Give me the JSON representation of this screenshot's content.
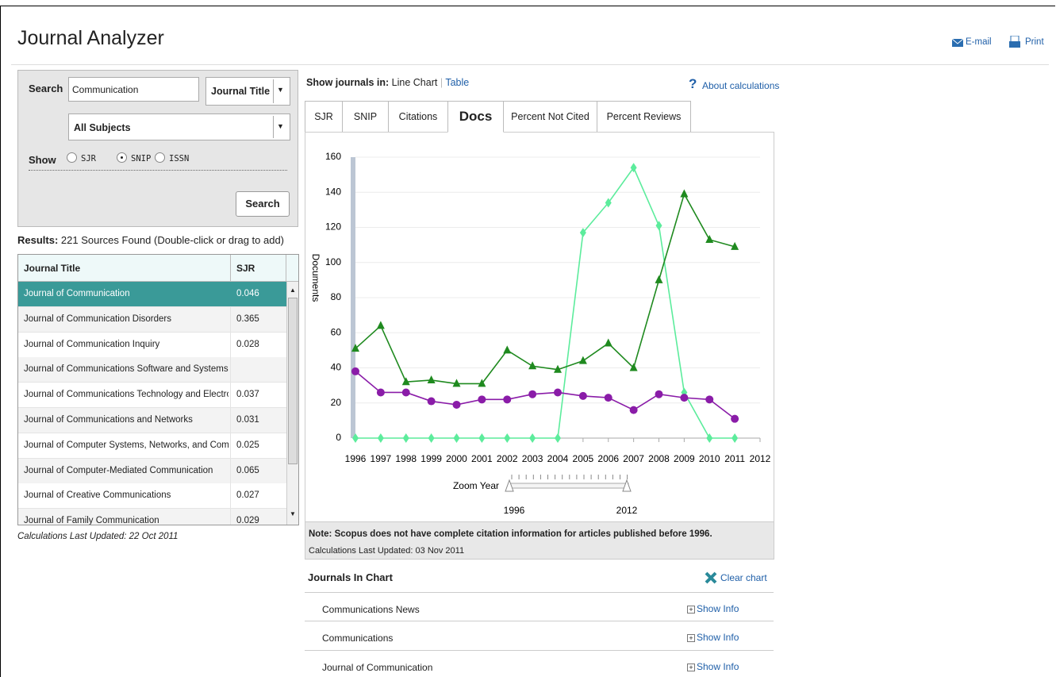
{
  "header": {
    "title": "Journal Analyzer",
    "email": "E-mail",
    "print": "Print"
  },
  "search": {
    "label": "Search",
    "query": "Communication",
    "field": "Journal Title",
    "subject": "All Subjects",
    "show_label": "Show",
    "options": [
      "SJR",
      "SNIP",
      "ISSN"
    ],
    "selected": 1,
    "button": "Search"
  },
  "results": {
    "label": "Results:",
    "text": "221 Sources Found (Double-click or drag to add)",
    "columns": [
      "Journal Title",
      "SJR"
    ],
    "rows": [
      [
        "Journal of Communication",
        "0.046"
      ],
      [
        "Journal of Communication Disorders",
        "0.365"
      ],
      [
        "Journal of Communication Inquiry",
        "0.028"
      ],
      [
        "Journal of Communications Software and Systems",
        null
      ],
      [
        "Journal of Communications Technology and Electronics",
        "0.037"
      ],
      [
        "Journal of Communications and Networks",
        "0.031"
      ],
      [
        "Journal of Computer Systems, Networks, and Commun",
        "0.025"
      ],
      [
        "Journal of Computer-Mediated Communication",
        "0.065"
      ],
      [
        "Journal of Creative Communications",
        "0.027"
      ],
      [
        "Journal of Family Communication",
        "0.029"
      ]
    ],
    "selected_row": 0,
    "updated": "Calculations Last Updated: 22 Oct 2011"
  },
  "view": {
    "label": "Show journals in:",
    "current": "Line Chart",
    "link": "Table",
    "about": "About calculations",
    "tabs": [
      "SJR",
      "SNIP",
      "Citations",
      "Docs",
      "Percent Not Cited",
      "Percent Reviews"
    ],
    "active_tab": 3
  },
  "chart_data": {
    "type": "line",
    "ylabel": "Documents",
    "x": [
      1996,
      1997,
      1998,
      1999,
      2000,
      2001,
      2002,
      2003,
      2004,
      2005,
      2006,
      2007,
      2008,
      2009,
      2010,
      2011
    ],
    "xlim": [
      1996,
      2012
    ],
    "xticks": [
      1996,
      1997,
      1998,
      1999,
      2000,
      2001,
      2002,
      2003,
      2004,
      2005,
      2006,
      2007,
      2008,
      2009,
      2010,
      2011,
      2012
    ],
    "ylim": [
      0,
      160
    ],
    "yticks": [
      0,
      20,
      40,
      60,
      80,
      100,
      120,
      140,
      160
    ],
    "grid": true,
    "series": [
      {
        "name": "Communications News",
        "color": "#5cec9c",
        "marker": "diamond",
        "values": [
          0,
          0,
          0,
          0,
          0,
          0,
          0,
          0,
          0,
          117,
          134,
          154,
          121,
          26,
          0,
          0
        ]
      },
      {
        "name": "Communications",
        "color": "#8a1ca8",
        "marker": "circle",
        "values": [
          38,
          26,
          26,
          21,
          19,
          22,
          22,
          25,
          26,
          24,
          23,
          16,
          25,
          23,
          22,
          11
        ]
      },
      {
        "name": "Journal of Communication",
        "color": "#1f8a1f",
        "marker": "triangle",
        "values": [
          51,
          64,
          32,
          33,
          31,
          31,
          50,
          41,
          39,
          44,
          54,
          40,
          90,
          139,
          113,
          109
        ]
      }
    ]
  },
  "zoom": {
    "label": "Zoom Year",
    "start": "1996",
    "end": "2012"
  },
  "note": {
    "text": "Note: Scopus does not have complete citation information for articles published before 1996.",
    "updated": "Calculations Last Updated: 03 Nov 2011"
  },
  "journals": {
    "title": "Journals In Chart",
    "clear": "Clear chart",
    "show_info": "Show Info"
  }
}
